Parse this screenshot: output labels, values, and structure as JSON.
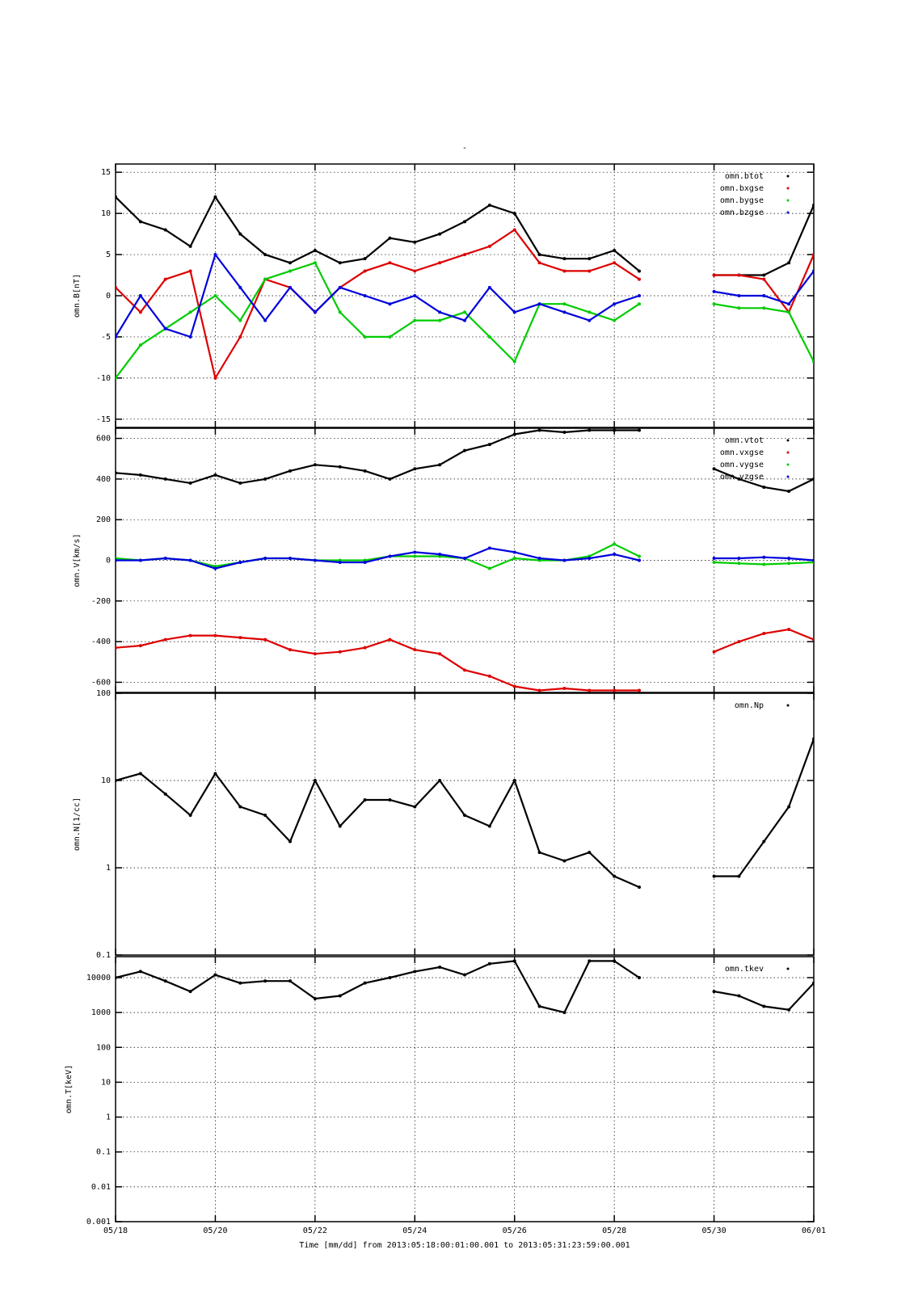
{
  "chart_data": [
    {
      "type": "line",
      "title": "-",
      "ylabel": "omn.B[nT]",
      "log": false,
      "grid": true,
      "legend": "upper right",
      "x": [
        0,
        0.5,
        1,
        1.5,
        2,
        2.5,
        3,
        3.5,
        4,
        4.5,
        5,
        5.5,
        6,
        6.5,
        7,
        7.5,
        8,
        8.5,
        9,
        9.5,
        10,
        10.5,
        11,
        11.5,
        12,
        12.5,
        13,
        13.5,
        14
      ],
      "xlim": [
        0,
        14
      ],
      "ylim": [
        -16,
        16
      ],
      "yticks": [
        -15,
        -10,
        -5,
        0,
        5,
        10,
        15
      ],
      "series": [
        {
          "name": "omn.btot",
          "color": "#000000",
          "values": [
            12,
            9,
            8,
            6,
            12,
            7.5,
            5,
            4,
            5.5,
            4,
            4.5,
            7,
            6.5,
            7.5,
            9,
            11,
            10,
            5,
            4.5,
            4.5,
            5.5,
            3,
            null,
            null,
            2.5,
            2.5,
            2.5,
            4,
            11
          ]
        },
        {
          "name": "omn.bxgse",
          "color": "#dd0000",
          "values": [
            1,
            -2,
            2,
            3,
            -10,
            -5,
            2,
            1,
            -2,
            1,
            3,
            4,
            3,
            4,
            5,
            6,
            8,
            4,
            3,
            3,
            4,
            2,
            null,
            null,
            2.5,
            2.5,
            2,
            -2,
            5
          ]
        },
        {
          "name": "omn.bygse",
          "color": "#00cc00",
          "values": [
            -10,
            -6,
            -4,
            -2,
            0,
            -3,
            2,
            3,
            4,
            -2,
            -5,
            -5,
            -3,
            -3,
            -2,
            -5,
            -8,
            -1,
            -1,
            -2,
            -3,
            -1,
            null,
            null,
            -1,
            -1.5,
            -1.5,
            -2,
            -8
          ]
        },
        {
          "name": "omn.bzgse",
          "color": "#0000dd",
          "values": [
            -5,
            0,
            -4,
            -5,
            5,
            1,
            -3,
            1,
            -2,
            1,
            0,
            -1,
            0,
            -2,
            -3,
            1,
            -2,
            -1,
            -2,
            -3,
            -1,
            0,
            null,
            null,
            0.5,
            0,
            0,
            -1,
            3
          ]
        }
      ]
    },
    {
      "type": "line",
      "ylabel": "omn.V[km/s]",
      "log": false,
      "grid": true,
      "legend": "upper right",
      "x": [
        0,
        0.5,
        1,
        1.5,
        2,
        2.5,
        3,
        3.5,
        4,
        4.5,
        5,
        5.5,
        6,
        6.5,
        7,
        7.5,
        8,
        8.5,
        9,
        9.5,
        10,
        10.5,
        11,
        11.5,
        12,
        12.5,
        13,
        13.5,
        14
      ],
      "xlim": [
        0,
        14
      ],
      "ylim": [
        -650,
        650
      ],
      "yticks": [
        -600,
        -400,
        -200,
        0,
        200,
        400,
        600
      ],
      "series": [
        {
          "name": "omn.vtot",
          "color": "#000000",
          "values": [
            430,
            420,
            400,
            380,
            420,
            380,
            400,
            440,
            470,
            460,
            440,
            400,
            450,
            470,
            540,
            570,
            620,
            640,
            630,
            640,
            640,
            640,
            null,
            null,
            450,
            400,
            360,
            340,
            400
          ]
        },
        {
          "name": "omn.vxgse",
          "color": "#dd0000",
          "values": [
            -430,
            -420,
            -390,
            -370,
            -370,
            -380,
            -390,
            -440,
            -460,
            -450,
            -430,
            -390,
            -440,
            -460,
            -540,
            -570,
            -620,
            -640,
            -630,
            -640,
            -640,
            -640,
            null,
            null,
            -450,
            -400,
            -360,
            -340,
            -390
          ]
        },
        {
          "name": "omn.vygse",
          "color": "#00cc00",
          "values": [
            10,
            0,
            10,
            0,
            -30,
            -10,
            10,
            10,
            0,
            0,
            0,
            20,
            20,
            20,
            10,
            -40,
            10,
            0,
            0,
            20,
            80,
            20,
            null,
            null,
            -10,
            -15,
            -20,
            -15,
            -10
          ]
        },
        {
          "name": "omn.vzgse",
          "color": "#0000dd",
          "values": [
            0,
            0,
            10,
            0,
            -40,
            -10,
            10,
            10,
            0,
            -10,
            -10,
            20,
            40,
            30,
            10,
            60,
            40,
            10,
            0,
            10,
            30,
            0,
            null,
            null,
            10,
            10,
            15,
            10,
            0
          ]
        }
      ]
    },
    {
      "type": "line",
      "ylabel": "omn.N[1/cc]",
      "log": true,
      "grid": true,
      "legend": "upper right",
      "x": [
        0,
        0.5,
        1,
        1.5,
        2,
        2.5,
        3,
        3.5,
        4,
        4.5,
        5,
        5.5,
        6,
        6.5,
        7,
        7.5,
        8,
        8.5,
        9,
        9.5,
        10,
        10.5,
        11,
        11.5,
        12,
        12.5,
        13,
        13.5,
        14
      ],
      "xlim": [
        0,
        14
      ],
      "ylim": [
        0.1,
        100
      ],
      "yticks": [
        0.1,
        1,
        10,
        100
      ],
      "series": [
        {
          "name": "omn.Np",
          "color": "#000000",
          "values": [
            10,
            12,
            7,
            4,
            12,
            5,
            4,
            2,
            10,
            3,
            6,
            6,
            5,
            10,
            4,
            3,
            10,
            1.5,
            1.2,
            1.5,
            0.8,
            0.6,
            null,
            null,
            0.8,
            0.8,
            2,
            5,
            30
          ]
        }
      ]
    },
    {
      "type": "line",
      "ylabel": "omn.T[keV]",
      "log": true,
      "grid": true,
      "legend": "upper right",
      "xlabel": "Time [mm/dd]  from 2013:05:18:00:01:00.001  to  2013:05:31:23:59:00.001",
      "x": [
        0,
        0.5,
        1,
        1.5,
        2,
        2.5,
        3,
        3.5,
        4,
        4.5,
        5,
        5.5,
        6,
        6.5,
        7,
        7.5,
        8,
        8.5,
        9,
        9.5,
        10,
        10.5,
        11,
        11.5,
        12,
        12.5,
        13,
        13.5,
        14
      ],
      "xlim": [
        0,
        14
      ],
      "xticks": [
        {
          "value": 0,
          "label": "05/18"
        },
        {
          "value": 2,
          "label": "05/20"
        },
        {
          "value": 4,
          "label": "05/22"
        },
        {
          "value": 6,
          "label": "05/24"
        },
        {
          "value": 8,
          "label": "05/26"
        },
        {
          "value": 10,
          "label": "05/28"
        },
        {
          "value": 12,
          "label": "05/30"
        },
        {
          "value": 14,
          "label": "06/01"
        }
      ],
      "ylim": [
        0.001,
        40000
      ],
      "yticks": [
        0.001,
        0.01,
        0.1,
        1,
        10,
        100,
        1000,
        10000
      ],
      "series": [
        {
          "name": "omn.tkev",
          "color": "#000000",
          "values": [
            10000,
            15000,
            8000,
            4000,
            12000,
            7000,
            8000,
            8000,
            2500,
            3000,
            7000,
            10000,
            15000,
            20000,
            12000,
            25000,
            30000,
            1500,
            1000,
            30000,
            30000,
            10000,
            null,
            null,
            4000,
            3000,
            1500,
            1200,
            7000
          ]
        }
      ]
    }
  ]
}
